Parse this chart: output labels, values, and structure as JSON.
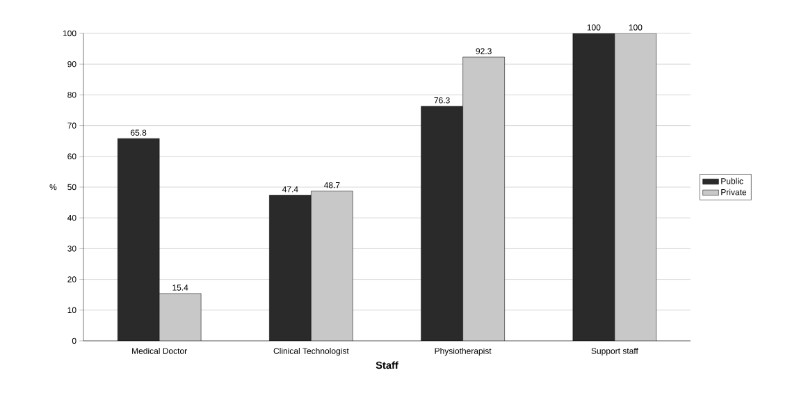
{
  "chart_data": {
    "type": "bar",
    "xlabel": "Staff",
    "ylabel": "%",
    "categories": [
      "Medical Doctor",
      "Clinical Technologist",
      "Physiotherapist",
      "Support staff"
    ],
    "series": [
      {
        "name": "Public",
        "color": "#2a2a2a",
        "values": [
          65.8,
          47.4,
          76.3,
          100
        ]
      },
      {
        "name": "Private",
        "color": "#c8c8c8",
        "values": [
          15.4,
          48.7,
          92.3,
          100
        ]
      }
    ],
    "ylim": [
      0,
      100
    ],
    "yticks": [
      0,
      10,
      20,
      30,
      40,
      50,
      60,
      70,
      80,
      90,
      100
    ],
    "grid": "y",
    "legend": "right",
    "data_labels": true
  }
}
